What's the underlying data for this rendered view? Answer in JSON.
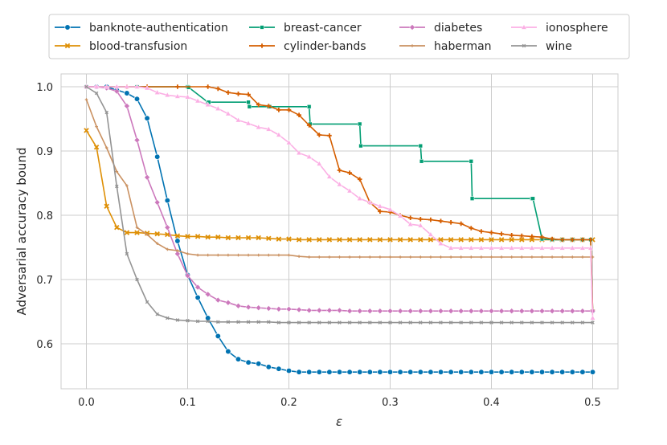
{
  "chart_data": {
    "type": "line",
    "title": "",
    "xlabel": "ε",
    "ylabel": "Adversarial accuracy bound",
    "xlim": [
      -0.025,
      0.525
    ],
    "ylim": [
      0.53,
      1.02
    ],
    "grid": true,
    "legend_position": "top",
    "x_ticks": [
      0.0,
      0.1,
      0.2,
      0.3,
      0.4,
      0.5
    ],
    "x_tick_labels": [
      "0.0",
      "0.1",
      "0.2",
      "0.3",
      "0.4",
      "0.5"
    ],
    "y_ticks": [
      0.6,
      0.7,
      0.8,
      0.9,
      1.0
    ],
    "y_tick_labels": [
      "0.6",
      "0.7",
      "0.8",
      "0.9",
      "1.0"
    ],
    "series": [
      {
        "name": "banknote-authentication",
        "color": "#0173b2",
        "marker": "circle",
        "x": [
          0.0,
          0.01,
          0.02,
          0.03,
          0.04,
          0.05,
          0.06,
          0.07,
          0.08,
          0.09,
          0.1,
          0.11,
          0.12,
          0.13,
          0.14,
          0.15,
          0.16,
          0.17,
          0.18,
          0.19,
          0.2,
          0.21,
          0.22,
          0.23,
          0.24,
          0.25,
          0.26,
          0.27,
          0.28,
          0.29,
          0.3,
          0.31,
          0.32,
          0.33,
          0.34,
          0.35,
          0.36,
          0.37,
          0.38,
          0.39,
          0.4,
          0.41,
          0.42,
          0.43,
          0.44,
          0.45,
          0.46,
          0.47,
          0.48,
          0.49,
          0.5
        ],
        "y": [
          1.0,
          1.0,
          1.0,
          0.995,
          0.99,
          0.981,
          0.951,
          0.891,
          0.823,
          0.76,
          0.707,
          0.672,
          0.64,
          0.612,
          0.588,
          0.576,
          0.571,
          0.569,
          0.564,
          0.561,
          0.558,
          0.556,
          0.556,
          0.556,
          0.556,
          0.556,
          0.556,
          0.556,
          0.556,
          0.556,
          0.556,
          0.556,
          0.556,
          0.556,
          0.556,
          0.556,
          0.556,
          0.556,
          0.556,
          0.556,
          0.556,
          0.556,
          0.556,
          0.556,
          0.556,
          0.556,
          0.556,
          0.556,
          0.556,
          0.556,
          0.556
        ]
      },
      {
        "name": "blood-transfusion",
        "color": "#de8f05",
        "marker": "x",
        "x": [
          0.0,
          0.01,
          0.02,
          0.03,
          0.04,
          0.05,
          0.06,
          0.07,
          0.08,
          0.09,
          0.1,
          0.11,
          0.12,
          0.13,
          0.14,
          0.15,
          0.16,
          0.17,
          0.18,
          0.19,
          0.2,
          0.21,
          0.22,
          0.23,
          0.24,
          0.25,
          0.26,
          0.27,
          0.28,
          0.29,
          0.3,
          0.31,
          0.32,
          0.33,
          0.34,
          0.35,
          0.36,
          0.37,
          0.38,
          0.39,
          0.4,
          0.41,
          0.42,
          0.43,
          0.44,
          0.45,
          0.46,
          0.47,
          0.48,
          0.49,
          0.5
        ],
        "y": [
          0.932,
          0.906,
          0.814,
          0.781,
          0.773,
          0.773,
          0.772,
          0.771,
          0.77,
          0.768,
          0.767,
          0.767,
          0.766,
          0.766,
          0.765,
          0.765,
          0.765,
          0.765,
          0.764,
          0.763,
          0.763,
          0.762,
          0.762,
          0.762,
          0.762,
          0.762,
          0.762,
          0.762,
          0.762,
          0.762,
          0.762,
          0.762,
          0.762,
          0.762,
          0.762,
          0.762,
          0.762,
          0.762,
          0.762,
          0.762,
          0.762,
          0.762,
          0.762,
          0.762,
          0.762,
          0.762,
          0.762,
          0.762,
          0.762,
          0.762,
          0.762
        ]
      },
      {
        "name": "breast-cancer",
        "color": "#029e73",
        "marker": "square",
        "x": [
          0.0,
          0.05,
          0.1,
          0.101,
          0.12,
          0.121,
          0.16,
          0.161,
          0.18,
          0.181,
          0.22,
          0.221,
          0.27,
          0.271,
          0.33,
          0.331,
          0.38,
          0.381,
          0.44,
          0.441,
          0.45,
          0.46,
          0.47,
          0.48,
          0.49,
          0.498,
          0.5
        ],
        "y": [
          1.0,
          1.0,
          1.0,
          0.999,
          0.976,
          0.976,
          0.976,
          0.969,
          0.969,
          0.969,
          0.969,
          0.942,
          0.942,
          0.908,
          0.908,
          0.884,
          0.884,
          0.826,
          0.826,
          0.826,
          0.763,
          0.762,
          0.762,
          0.762,
          0.762,
          0.762,
          0.651
        ]
      },
      {
        "name": "cylinder-bands",
        "color": "#d55e00",
        "marker": "plus",
        "x": [
          0.0,
          0.04,
          0.06,
          0.09,
          0.12,
          0.13,
          0.14,
          0.15,
          0.16,
          0.17,
          0.18,
          0.19,
          0.2,
          0.21,
          0.22,
          0.23,
          0.24,
          0.25,
          0.26,
          0.27,
          0.28,
          0.29,
          0.3,
          0.31,
          0.32,
          0.33,
          0.34,
          0.35,
          0.36,
          0.37,
          0.38,
          0.39,
          0.4,
          0.41,
          0.42,
          0.43,
          0.44,
          0.45,
          0.46,
          0.47,
          0.48,
          0.49,
          0.498,
          0.5
        ],
        "y": [
          1.0,
          1.0,
          1.0,
          1.0,
          1.0,
          0.997,
          0.991,
          0.989,
          0.988,
          0.972,
          0.97,
          0.964,
          0.964,
          0.956,
          0.94,
          0.925,
          0.924,
          0.87,
          0.866,
          0.856,
          0.82,
          0.806,
          0.805,
          0.8,
          0.796,
          0.794,
          0.793,
          0.791,
          0.789,
          0.787,
          0.78,
          0.775,
          0.773,
          0.771,
          0.769,
          0.768,
          0.767,
          0.766,
          0.763,
          0.762,
          0.762,
          0.762,
          0.762,
          0.652
        ]
      },
      {
        "name": "diabetes",
        "color": "#cc78bc",
        "marker": "diamond",
        "x": [
          0.0,
          0.01,
          0.02,
          0.03,
          0.04,
          0.05,
          0.06,
          0.07,
          0.08,
          0.09,
          0.1,
          0.11,
          0.12,
          0.13,
          0.14,
          0.15,
          0.16,
          0.17,
          0.18,
          0.19,
          0.2,
          0.21,
          0.22,
          0.23,
          0.24,
          0.25,
          0.26,
          0.27,
          0.28,
          0.29,
          0.3,
          0.31,
          0.32,
          0.33,
          0.34,
          0.35,
          0.36,
          0.37,
          0.38,
          0.39,
          0.4,
          0.41,
          0.42,
          0.43,
          0.44,
          0.45,
          0.46,
          0.47,
          0.48,
          0.49,
          0.5
        ],
        "y": [
          1.0,
          1.0,
          0.998,
          0.993,
          0.97,
          0.917,
          0.859,
          0.82,
          0.781,
          0.74,
          0.706,
          0.688,
          0.677,
          0.668,
          0.664,
          0.659,
          0.657,
          0.656,
          0.655,
          0.654,
          0.654,
          0.653,
          0.652,
          0.652,
          0.652,
          0.652,
          0.651,
          0.651,
          0.651,
          0.651,
          0.651,
          0.651,
          0.651,
          0.651,
          0.651,
          0.651,
          0.651,
          0.651,
          0.651,
          0.651,
          0.651,
          0.651,
          0.651,
          0.651,
          0.651,
          0.651,
          0.651,
          0.651,
          0.651,
          0.651,
          0.651
        ]
      },
      {
        "name": "haberman",
        "color": "#ca9161",
        "marker": "small-plus",
        "x": [
          0.0,
          0.01,
          0.02,
          0.03,
          0.04,
          0.05,
          0.06,
          0.07,
          0.08,
          0.09,
          0.1,
          0.11,
          0.12,
          0.13,
          0.14,
          0.15,
          0.16,
          0.17,
          0.18,
          0.19,
          0.2,
          0.21,
          0.22,
          0.23,
          0.24,
          0.25,
          0.26,
          0.27,
          0.28,
          0.29,
          0.3,
          0.31,
          0.32,
          0.33,
          0.34,
          0.35,
          0.36,
          0.37,
          0.38,
          0.39,
          0.4,
          0.41,
          0.42,
          0.43,
          0.44,
          0.45,
          0.46,
          0.47,
          0.48,
          0.49,
          0.5
        ],
        "y": [
          0.98,
          0.938,
          0.905,
          0.868,
          0.846,
          0.781,
          0.77,
          0.756,
          0.747,
          0.745,
          0.74,
          0.738,
          0.738,
          0.738,
          0.738,
          0.738,
          0.738,
          0.738,
          0.738,
          0.738,
          0.738,
          0.736,
          0.735,
          0.735,
          0.735,
          0.735,
          0.735,
          0.735,
          0.735,
          0.735,
          0.735,
          0.735,
          0.735,
          0.735,
          0.735,
          0.735,
          0.735,
          0.735,
          0.735,
          0.735,
          0.735,
          0.735,
          0.735,
          0.735,
          0.735,
          0.735,
          0.735,
          0.735,
          0.735,
          0.735,
          0.735
        ]
      },
      {
        "name": "ionosphere",
        "color": "#fbafe4",
        "marker": "triangle",
        "x": [
          0.0,
          0.01,
          0.02,
          0.03,
          0.04,
          0.05,
          0.06,
          0.07,
          0.08,
          0.09,
          0.1,
          0.11,
          0.12,
          0.13,
          0.14,
          0.15,
          0.16,
          0.17,
          0.18,
          0.19,
          0.2,
          0.21,
          0.22,
          0.23,
          0.24,
          0.25,
          0.26,
          0.27,
          0.28,
          0.29,
          0.3,
          0.31,
          0.32,
          0.33,
          0.34,
          0.35,
          0.36,
          0.37,
          0.38,
          0.39,
          0.4,
          0.41,
          0.42,
          0.43,
          0.44,
          0.45,
          0.46,
          0.47,
          0.48,
          0.49,
          0.498,
          0.5
        ],
        "y": [
          1.0,
          1.0,
          1.0,
          1.0,
          1.0,
          1.0,
          0.998,
          0.991,
          0.987,
          0.985,
          0.984,
          0.978,
          0.972,
          0.966,
          0.958,
          0.948,
          0.943,
          0.937,
          0.934,
          0.925,
          0.913,
          0.897,
          0.891,
          0.88,
          0.86,
          0.848,
          0.838,
          0.826,
          0.82,
          0.814,
          0.809,
          0.799,
          0.786,
          0.784,
          0.77,
          0.756,
          0.749,
          0.749,
          0.749,
          0.749,
          0.749,
          0.749,
          0.749,
          0.749,
          0.749,
          0.749,
          0.749,
          0.749,
          0.749,
          0.749,
          0.749,
          0.64
        ]
      },
      {
        "name": "wine",
        "color": "#949494",
        "marker": "small-x",
        "x": [
          0.0,
          0.01,
          0.02,
          0.03,
          0.04,
          0.05,
          0.06,
          0.07,
          0.08,
          0.09,
          0.1,
          0.11,
          0.12,
          0.13,
          0.14,
          0.15,
          0.16,
          0.17,
          0.18,
          0.19,
          0.2,
          0.21,
          0.22,
          0.23,
          0.24,
          0.25,
          0.26,
          0.27,
          0.28,
          0.29,
          0.3,
          0.31,
          0.32,
          0.33,
          0.34,
          0.35,
          0.36,
          0.37,
          0.38,
          0.39,
          0.4,
          0.41,
          0.42,
          0.43,
          0.44,
          0.45,
          0.46,
          0.47,
          0.48,
          0.49,
          0.5
        ],
        "y": [
          1.0,
          0.99,
          0.96,
          0.845,
          0.74,
          0.7,
          0.665,
          0.646,
          0.64,
          0.637,
          0.636,
          0.635,
          0.635,
          0.634,
          0.634,
          0.634,
          0.634,
          0.634,
          0.634,
          0.633,
          0.633,
          0.633,
          0.633,
          0.633,
          0.633,
          0.633,
          0.633,
          0.633,
          0.633,
          0.633,
          0.633,
          0.633,
          0.633,
          0.633,
          0.633,
          0.633,
          0.633,
          0.633,
          0.633,
          0.633,
          0.633,
          0.633,
          0.633,
          0.633,
          0.633,
          0.633,
          0.633,
          0.633,
          0.633,
          0.633,
          0.633
        ]
      }
    ]
  }
}
